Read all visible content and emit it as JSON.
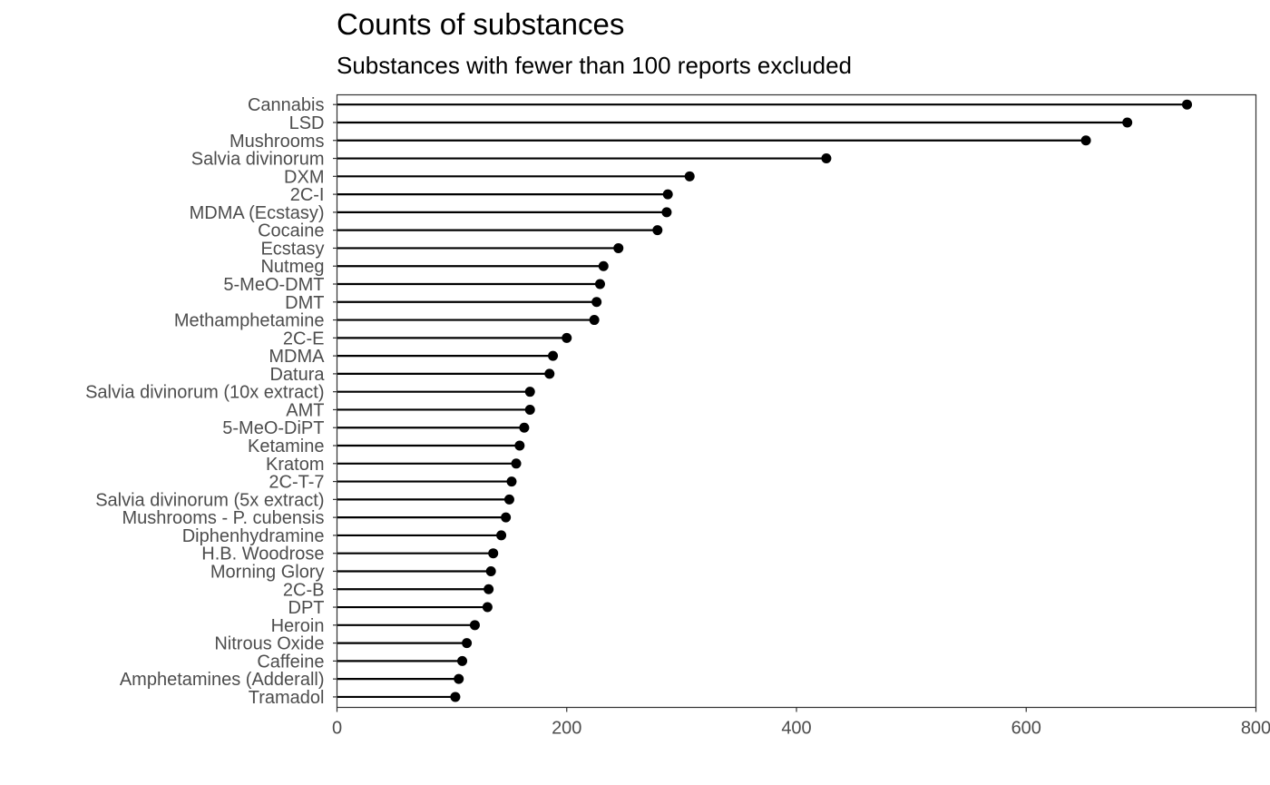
{
  "chart_data": {
    "type": "lollipop",
    "title": "Counts of substances",
    "subtitle": "Substances with fewer than 100 reports excluded",
    "xlabel": "",
    "ylabel": "",
    "xlim": [
      0,
      800
    ],
    "x_ticks": [
      0,
      200,
      400,
      600,
      800
    ],
    "grid": false,
    "categories": [
      "Cannabis",
      "LSD",
      "Mushrooms",
      "Salvia divinorum",
      "DXM",
      "2C-I",
      "MDMA (Ecstasy)",
      "Cocaine",
      "Ecstasy",
      "Nutmeg",
      "5-MeO-DMT",
      "DMT",
      "Methamphetamine",
      "2C-E",
      "MDMA",
      "Datura",
      "Salvia divinorum (10x extract)",
      "AMT",
      "5-MeO-DiPT",
      "Ketamine",
      "Kratom",
      "2C-T-7",
      "Salvia divinorum (5x extract)",
      "Mushrooms - P. cubensis",
      "Diphenhydramine",
      "H.B. Woodrose",
      "Morning Glory",
      "2C-B",
      "DPT",
      "Heroin",
      "Nitrous Oxide",
      "Caffeine",
      "Amphetamines (Adderall)",
      "Tramadol"
    ],
    "values": [
      740,
      688,
      652,
      426,
      307,
      288,
      287,
      279,
      245,
      232,
      229,
      226,
      224,
      200,
      188,
      185,
      168,
      168,
      163,
      159,
      156,
      152,
      150,
      147,
      143,
      136,
      134,
      132,
      131,
      120,
      113,
      109,
      106,
      103
    ]
  }
}
